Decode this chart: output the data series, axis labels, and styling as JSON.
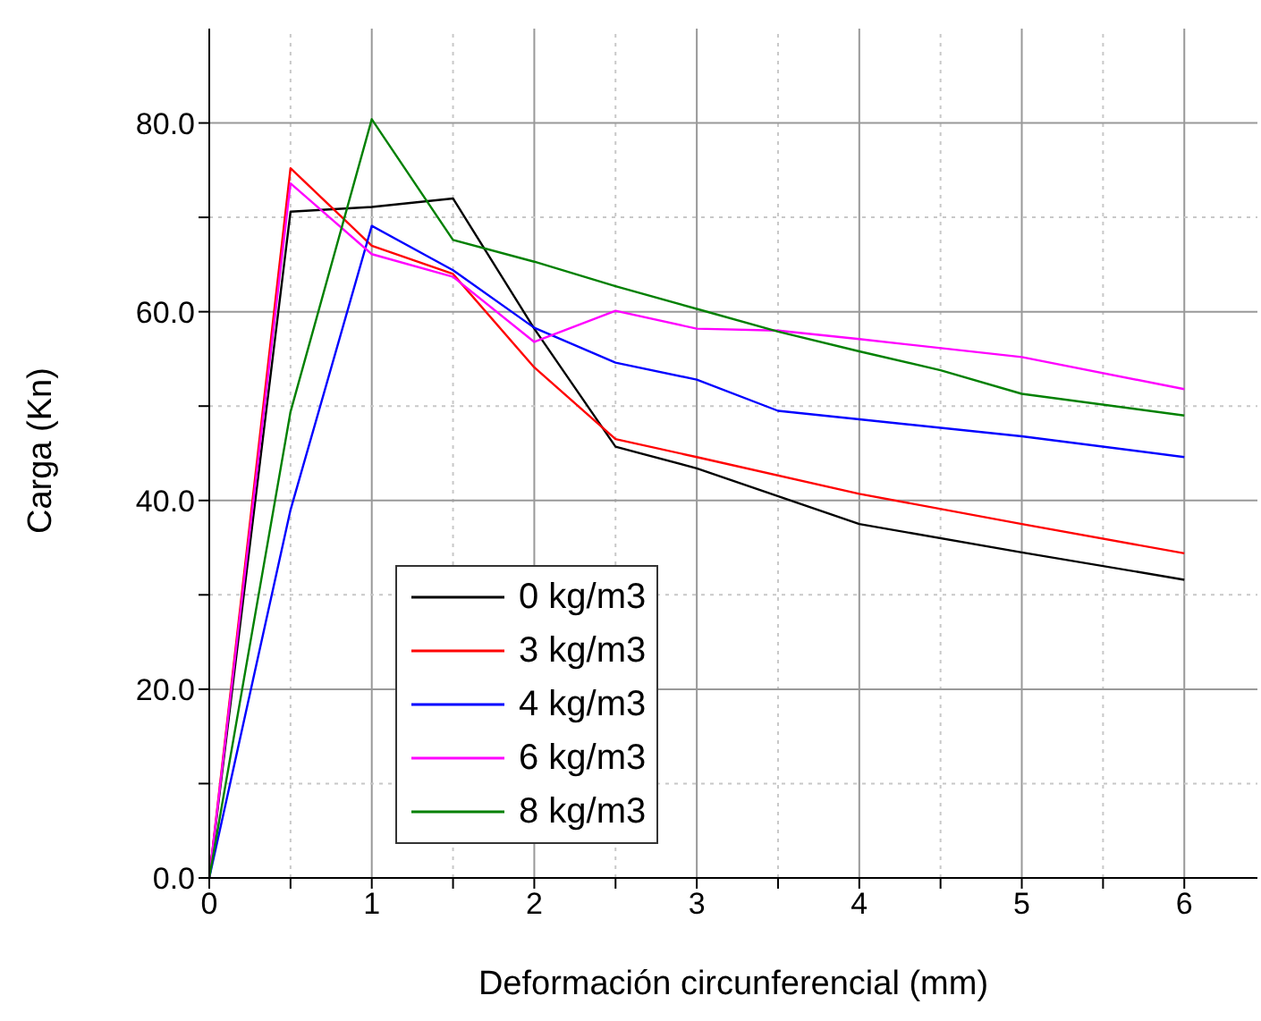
{
  "chart_data": {
    "type": "line",
    "xlabel": "Deformación circunferencial (mm)",
    "ylabel": "Carga (Kn)",
    "xlim": [
      0,
      6.45
    ],
    "xticks": [
      0,
      {
        "value": 0.5,
        "label": null
      },
      1,
      {
        "value": 1.5,
        "label": null
      },
      2,
      {
        "value": 2.5,
        "label": null
      },
      3,
      {
        "value": 3.5,
        "label": null
      },
      4,
      {
        "value": 4.5,
        "label": null
      },
      5,
      {
        "value": 5.5,
        "label": null
      },
      6
    ],
    "ylim": [
      0,
      90
    ],
    "yticks": [
      {
        "value": 0,
        "label": "0.0"
      },
      {
        "value": 10,
        "label": null
      },
      {
        "value": 20,
        "label": "20.0"
      },
      {
        "value": 30,
        "label": null
      },
      {
        "value": 40,
        "label": "40.0"
      },
      {
        "value": 50,
        "label": null
      },
      {
        "value": 60,
        "label": "60.0"
      },
      {
        "value": 70,
        "label": null
      },
      {
        "value": 80,
        "label": "80.0"
      }
    ],
    "grid": true,
    "legend": "bottom left",
    "marker": "none",
    "line_style": "solid",
    "series": [
      {
        "name": "0 kg/m3",
        "color": "#000000",
        "x": [
          0,
          0.5,
          1,
          1.5,
          2,
          2.5,
          3,
          4,
          5,
          6
        ],
        "values": [
          0,
          70.6,
          71.1,
          72.0,
          58.2,
          45.7,
          43.4,
          37.5,
          34.5,
          31.6
        ]
      },
      {
        "name": "3 kg/m3",
        "color": "#ff0000",
        "x": [
          0,
          0.5,
          1,
          1.5,
          2,
          2.5,
          3,
          4,
          5,
          6
        ],
        "values": [
          0,
          75.2,
          67.0,
          64.0,
          54.1,
          46.5,
          44.6,
          40.7,
          37.5,
          34.4
        ]
      },
      {
        "name": "4 kg/m3",
        "color": "#0000ff",
        "x": [
          0,
          0.5,
          1,
          1.5,
          2,
          2.5,
          3,
          3.5,
          4,
          5,
          6
        ],
        "values": [
          0,
          39,
          69.1,
          64.4,
          58.3,
          54.6,
          52.8,
          49.5,
          48.6,
          46.8,
          44.6
        ]
      },
      {
        "name": "6 kg/m3",
        "color": "#ff00ff",
        "x": [
          0,
          0.5,
          1,
          1.5,
          2,
          2.5,
          3,
          3.5,
          4,
          5,
          6
        ],
        "values": [
          0,
          73.6,
          66.1,
          63.7,
          56.8,
          60.1,
          58.2,
          58.0,
          57.1,
          55.2,
          51.8
        ]
      },
      {
        "name": "8 kg/m3",
        "color": "#008000",
        "x": [
          0,
          0.5,
          1,
          1.5,
          2,
          2.5,
          3,
          3.5,
          4,
          4.5,
          5,
          6
        ],
        "values": [
          0,
          49.4,
          80.4,
          67.6,
          65.3,
          62.7,
          60.3,
          57.9,
          55.8,
          53.8,
          51.3,
          49.0
        ]
      }
    ]
  }
}
